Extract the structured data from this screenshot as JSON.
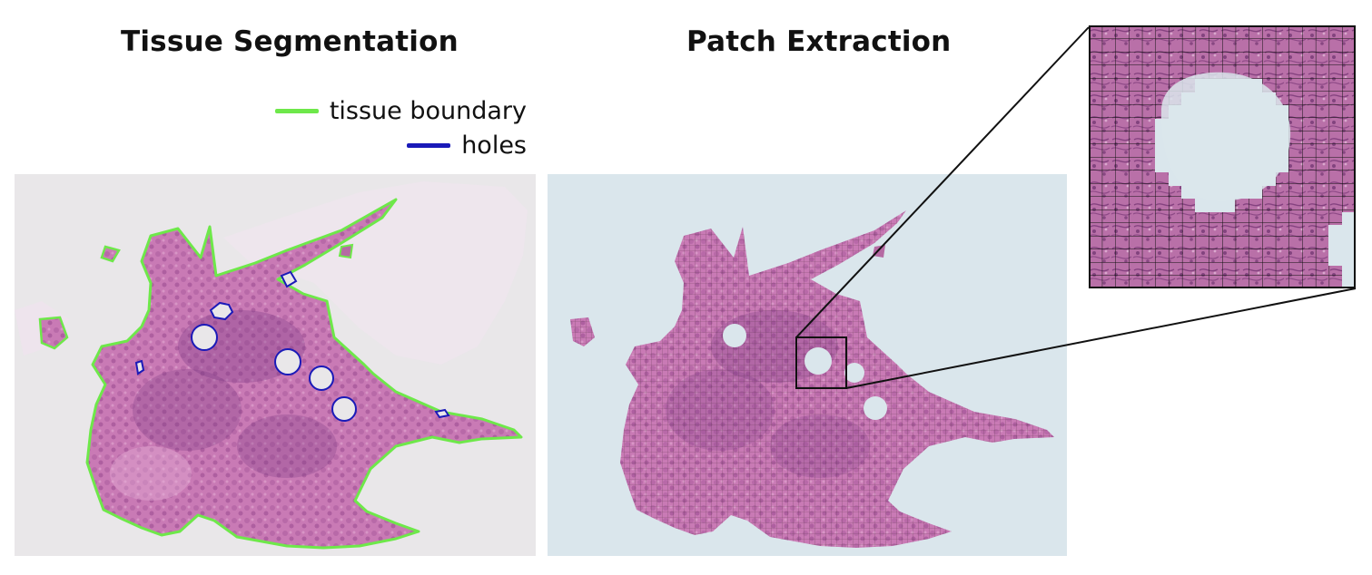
{
  "titles": {
    "segmentation": "Tissue Segmentation",
    "extraction": "Patch Extraction"
  },
  "legend": {
    "boundary_label": "tissue boundary",
    "boundary_color": "#6ee84a",
    "holes_label": "holes",
    "holes_color": "#1a1ab8"
  },
  "colors": {
    "slide_background": "#e9e7e9",
    "extraction_background": "#dae6ec",
    "tissue": "#c97ab5",
    "tissue_dark": "#8e3f88",
    "patch_grid": "#4a2a3a",
    "zoom_box": "#111111"
  }
}
